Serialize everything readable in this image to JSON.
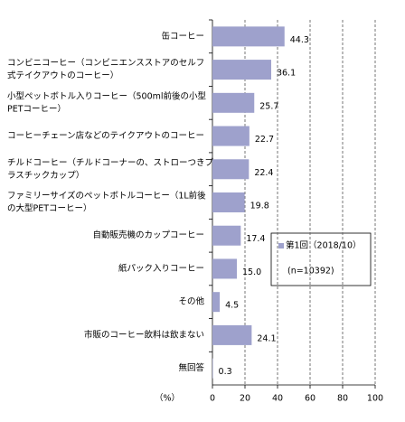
{
  "chart_data": {
    "type": "bar",
    "orientation": "horizontal",
    "x_label": "（%）",
    "categories": [
      [
        "缶コーヒー"
      ],
      [
        "コンビニコーヒー（コンビニエンスストアのセルフ",
        "式テイクアウトのコーヒー）"
      ],
      [
        "小型ペットボトル入りコーヒー（500ml前後の小型",
        "PETコーヒー）"
      ],
      [
        "コーヒーチェーン店などのテイクアウトのコーヒー"
      ],
      [
        "チルドコーヒー（チルドコーナーの、ストローつきプ",
        "ラスチックカップ）"
      ],
      [
        "ファミリーサイズのペットボトルコーヒー（1L前後",
        "の大型PETコーヒー）"
      ],
      [
        "自動販売機のカップコーヒー"
      ],
      [
        "紙パック入りコーヒー"
      ],
      [
        "その他"
      ],
      [
        "市販のコーヒー飲料は飲まない"
      ],
      [
        "無回答"
      ]
    ],
    "series": [
      {
        "name": "第1回（2018/10）",
        "color": "#9ea1cc",
        "values": [
          44.3,
          36.1,
          25.7,
          22.7,
          22.4,
          19.8,
          17.4,
          15.0,
          4.5,
          24.1,
          0.3
        ],
        "value_labels": [
          "44.3",
          "36.1",
          "25.7",
          "22.7",
          "22.4",
          "19.8",
          "17.4",
          "15.0",
          "4.5",
          "24.1",
          "0.3"
        ]
      }
    ],
    "legend_note": "(n=10392)",
    "xlim": [
      0,
      100
    ],
    "xticks": [
      0,
      20,
      40,
      60,
      80,
      100
    ],
    "grid": true
  }
}
